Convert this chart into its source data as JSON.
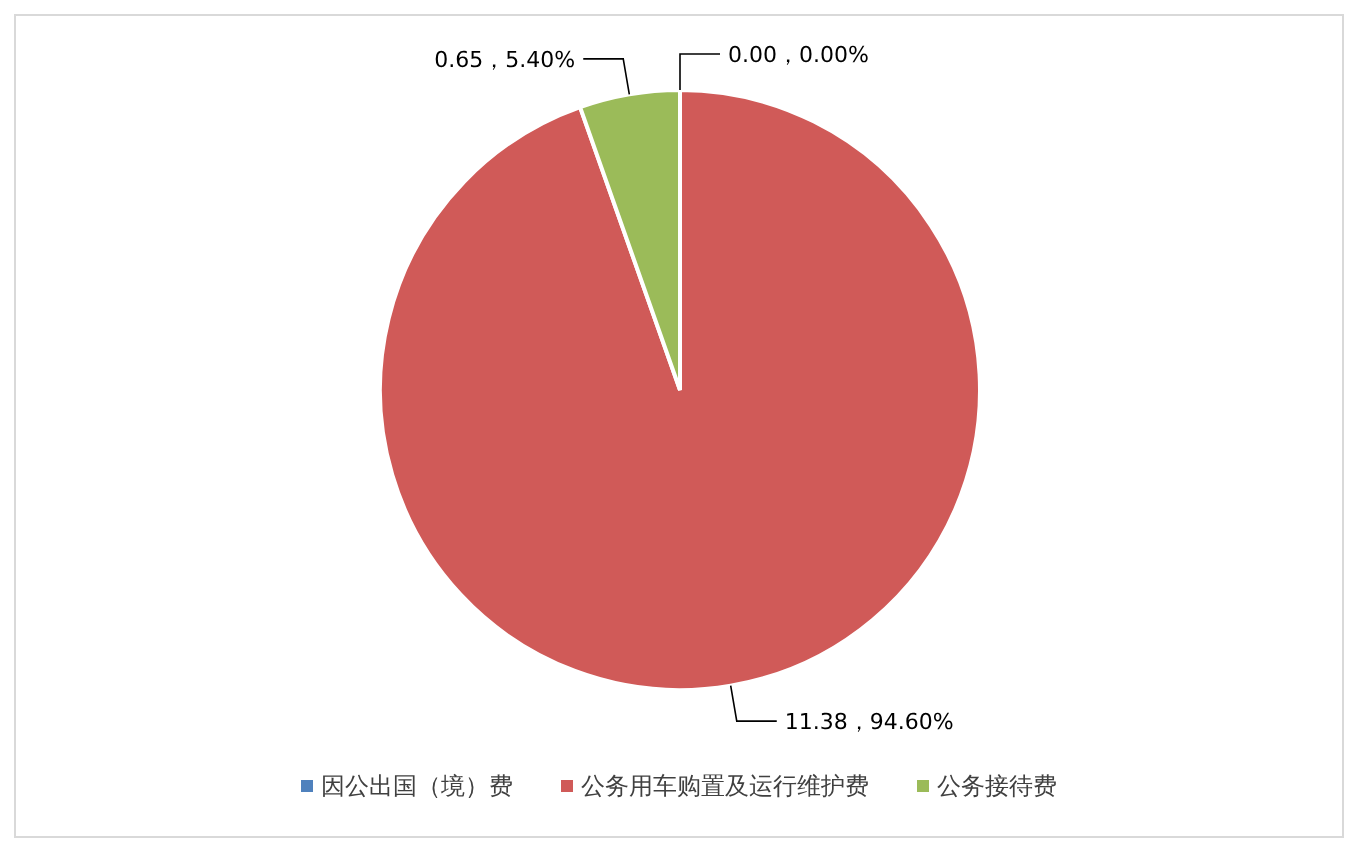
{
  "chart_data": {
    "type": "pie",
    "categories": [
      "因公出国（境）费",
      "公务用车购置及运行维护费",
      "公务接待费"
    ],
    "values": [
      0.0,
      11.38,
      0.65
    ],
    "colors": [
      "#4f81bd",
      "#d05a58",
      "#9bbb59"
    ],
    "value_labels": [
      "0.00，0.00%",
      "11.38，94.60%",
      "0.65，5.40%"
    ],
    "legend": "bottom"
  }
}
